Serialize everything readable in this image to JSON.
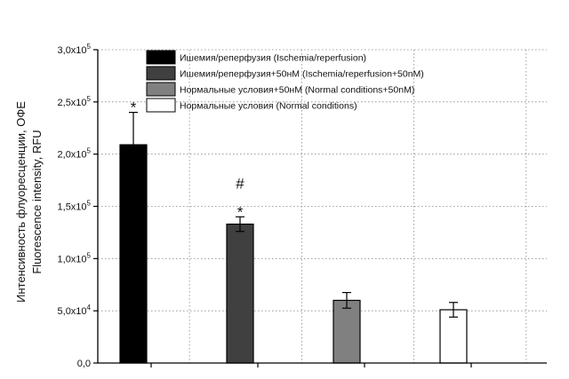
{
  "chart_data": {
    "type": "bar",
    "ylabel_lines": [
      "Интенсивность флуоресценции, ОФЕ",
      "Fluorescence intensity, RFU"
    ],
    "ylim": [
      0,
      300000
    ],
    "ytick_values": [
      0,
      50000,
      100000,
      150000,
      200000,
      250000,
      300000
    ],
    "ytick_labels": [
      {
        "mantissa": "0,0",
        "exp": ""
      },
      {
        "mantissa": "5,0x10",
        "exp": "4"
      },
      {
        "mantissa": "1,0x10",
        "exp": "5"
      },
      {
        "mantissa": "1,5x10",
        "exp": "5"
      },
      {
        "mantissa": "2,0x10",
        "exp": "5"
      },
      {
        "mantissa": "2,5x10",
        "exp": "5"
      },
      {
        "mantissa": "3,0x10",
        "exp": "5"
      }
    ],
    "grid": true,
    "legend_position": "top",
    "series": [
      {
        "name": "Ишемия/реперфузия (Ischemia/reperfusion)",
        "value": 209000,
        "error": 31000,
        "color": "#000000",
        "markers": [
          "*"
        ]
      },
      {
        "name": "Ишемия/реперфузия+50нМ (Ischemia/reperfusion+50nM)",
        "value": 133000,
        "error": 7000,
        "color": "#404040",
        "markers": [
          "#",
          "*"
        ]
      },
      {
        "name": "Нормальные условия+50нМ (Normal conditions+50nM)",
        "value": 60000,
        "error": 7500,
        "color": "#808080",
        "markers": []
      },
      {
        "name": "Нормальные условия (Normal conditions)",
        "value": 51000,
        "error": 7000,
        "color": "#ffffff",
        "markers": []
      }
    ]
  }
}
